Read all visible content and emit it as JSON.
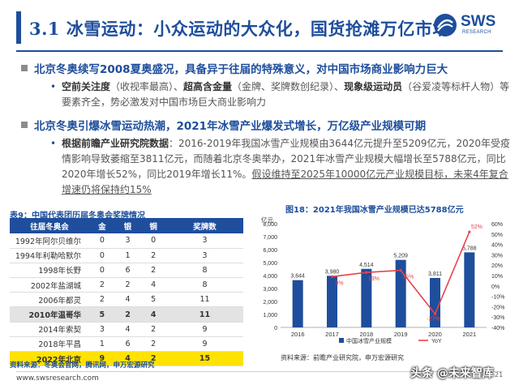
{
  "header": {
    "title": "3.1 冰雪运动：小众运动的大众化，国货抢滩万亿市场",
    "logo_text": "SWS",
    "logo_sub": "RESEARCH"
  },
  "bullets": [
    {
      "heading": "北京冬奥续写2008夏奥盛况，具备异于往届的特殊意义，对中国市场商业影响力巨大",
      "sub": {
        "bold1": "空前关注度",
        "t1": "（收视率最高）、",
        "bold2": "超高含金量",
        "t2": "（金牌、奖牌数创纪录）、",
        "bold3": "现象级运动员",
        "t3": "（谷爱凌等标杆人物）等要素齐全，势必激发对中国市场巨大商业影响力"
      }
    },
    {
      "heading": "北京冬奥引爆冰雪运动热潮，2021年冰雪产业爆发式增长，万亿级产业规模可期",
      "sub": {
        "bold1": "根据前瞻产业研究院数据",
        "t1": "：2016-2019年我国冰雪产业规模由3644亿元提升至5209亿元，2020年受疫情影响导致萎缩至3811亿元，而随着北京冬奥举办，2021年冰雪产业规模大幅增长至5788亿元，同比2020年增长52%，同比2019年增长11%。",
        "ul": "假设维持至2025年10000亿元产业规模目标，未来4年复合增速仍将保持约15%"
      }
    }
  ],
  "table": {
    "title": "表9：中国代表团历届冬奥会奖牌情况",
    "headers": [
      "往届冬奥会",
      "金",
      "银",
      "铜",
      "奖牌数"
    ],
    "rows": [
      [
        "1992年阿尔贝维尔",
        "0",
        "3",
        "0",
        "3"
      ],
      [
        "1994年利勒哈默尔",
        "0",
        "1",
        "2",
        "3"
      ],
      [
        "1998年长野",
        "0",
        "6",
        "2",
        "8"
      ],
      [
        "2002年盐湖城",
        "2",
        "2",
        "4",
        "8"
      ],
      [
        "2006年都灵",
        "2",
        "4",
        "5",
        "11"
      ],
      [
        "2010年温哥华",
        "5",
        "2",
        "4",
        "11"
      ],
      [
        "2014年索契",
        "3",
        "4",
        "2",
        "9"
      ],
      [
        "2018年平昌",
        "1",
        "6",
        "2",
        "9"
      ],
      [
        "2022年北京",
        "9",
        "4",
        "2",
        "15"
      ]
    ],
    "source": "资料来源：冬奥会官网，腾讯网，申万宏源研究"
  },
  "chart_data": {
    "type": "bar",
    "title": "图18：2021年我国冰雪产业规模已达5788亿元",
    "categories": [
      "2016",
      "2017",
      "2018",
      "2019",
      "2020",
      "2021"
    ],
    "y_unit": "亿元",
    "ylim": [
      0,
      8000
    ],
    "yticks": [
      "0",
      "1,000",
      "2,000",
      "3,000",
      "4,000",
      "5,000",
      "6,000",
      "7,000",
      "8,000"
    ],
    "y2lim": [
      -40,
      60
    ],
    "y2ticks": [
      "-40%",
      "-30%",
      "-20%",
      "-10%",
      "0%",
      "10%",
      "20%",
      "30%",
      "40%",
      "50%",
      "60%"
    ],
    "series": [
      {
        "name": "中国冰雪产业规模",
        "type": "bar",
        "color": "#1e4e9c",
        "values": [
          3644,
          3980,
          4514,
          5209,
          3811,
          5788
        ],
        "labels": [
          "3,644",
          "3,980",
          "4,514",
          "5,209",
          "3,811",
          "5,788"
        ]
      },
      {
        "name": "YoY",
        "type": "line",
        "axis": "right",
        "color": "#e8434c",
        "values": [
          null,
          9,
          13,
          15,
          -27,
          52
        ],
        "labels": [
          "",
          "9%",
          "13%",
          "15%",
          "-27%",
          "52%"
        ]
      }
    ],
    "legend": "bottom",
    "grid": false,
    "source": "资料来源：前瞻产业研究院，申万宏源研究"
  },
  "footer": {
    "website": "www.swsresearch.com",
    "page": "21",
    "watermark": "头条 @未来智库"
  }
}
